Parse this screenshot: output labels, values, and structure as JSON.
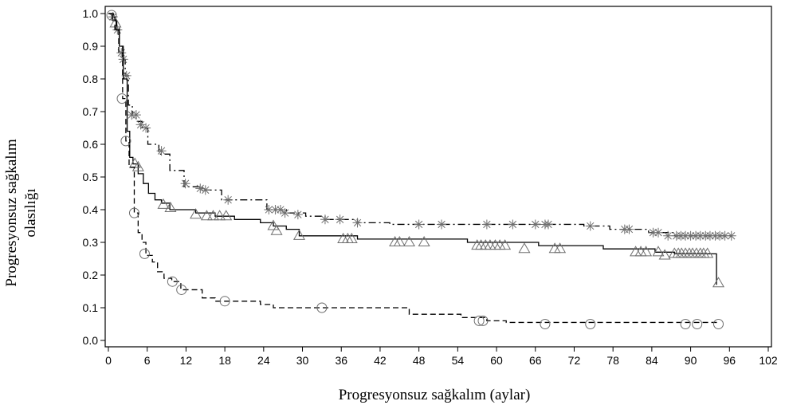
{
  "chart_data": {
    "type": "line",
    "step": true,
    "title": "",
    "xlabel": "Progresyonsuz sağkalım (aylar)",
    "ylabel_line1": "Progresyonsuz sağkalım",
    "ylabel_line2": "olasılığı",
    "xlim": [
      0,
      102
    ],
    "ylim": [
      0,
      1.02
    ],
    "xticks": [
      0,
      6,
      12,
      18,
      24,
      30,
      36,
      42,
      48,
      54,
      60,
      66,
      72,
      78,
      84,
      90,
      96,
      102
    ],
    "yticks": [
      0.0,
      0.1,
      0.2,
      0.3,
      0.4,
      0.5,
      0.6,
      0.7,
      0.8,
      0.9,
      1.0
    ],
    "legend": "none",
    "series": [
      {
        "line": "dash-dot",
        "marker": "asterisk",
        "color": "#000000",
        "marker_color": "#6e6e6e",
        "steps": [
          [
            0,
            1.0
          ],
          [
            0.8,
            0.99
          ],
          [
            1.3,
            0.96
          ],
          [
            1.7,
            0.9
          ],
          [
            2.2,
            0.86
          ],
          [
            2.6,
            0.81
          ],
          [
            3.1,
            0.72
          ],
          [
            3.7,
            0.69
          ],
          [
            4.3,
            0.67
          ],
          [
            5.2,
            0.65
          ],
          [
            6.1,
            0.6
          ],
          [
            7.8,
            0.57
          ],
          [
            9.5,
            0.52
          ],
          [
            11.7,
            0.47
          ],
          [
            14.5,
            0.46
          ],
          [
            17.5,
            0.43
          ],
          [
            24.5,
            0.4
          ],
          [
            27.5,
            0.39
          ],
          [
            30.5,
            0.38
          ],
          [
            33.5,
            0.37
          ],
          [
            38.5,
            0.36
          ],
          [
            43.5,
            0.355
          ],
          [
            73.5,
            0.35
          ],
          [
            77.5,
            0.34
          ],
          [
            83.5,
            0.33
          ],
          [
            87.5,
            0.32
          ],
          [
            96.5,
            0.32
          ]
        ],
        "markers": [
          [
            0.7,
            0.99
          ],
          [
            1.4,
            0.95
          ],
          [
            2.0,
            0.88
          ],
          [
            2.3,
            0.86
          ],
          [
            2.8,
            0.81
          ],
          [
            3.6,
            0.69
          ],
          [
            4.3,
            0.69
          ],
          [
            5.0,
            0.66
          ],
          [
            5.8,
            0.65
          ],
          [
            8.2,
            0.58
          ],
          [
            11.9,
            0.48
          ],
          [
            14.2,
            0.465
          ],
          [
            15.0,
            0.46
          ],
          [
            18.5,
            0.43
          ],
          [
            24.8,
            0.4
          ],
          [
            25.8,
            0.4
          ],
          [
            26.6,
            0.4
          ],
          [
            27.3,
            0.39
          ],
          [
            29.3,
            0.385
          ],
          [
            33.5,
            0.37
          ],
          [
            35.8,
            0.37
          ],
          [
            38.5,
            0.36
          ],
          [
            48.0,
            0.355
          ],
          [
            51.5,
            0.355
          ],
          [
            58.5,
            0.355
          ],
          [
            62.5,
            0.355
          ],
          [
            66.0,
            0.355
          ],
          [
            67.5,
            0.355
          ],
          [
            68.0,
            0.355
          ],
          [
            74.5,
            0.35
          ],
          [
            79.8,
            0.34
          ],
          [
            80.5,
            0.34
          ],
          [
            84.2,
            0.33
          ],
          [
            85.0,
            0.33
          ],
          [
            86.5,
            0.32
          ],
          [
            87.8,
            0.32
          ],
          [
            88.5,
            0.32
          ],
          [
            89.2,
            0.32
          ],
          [
            90.0,
            0.32
          ],
          [
            90.8,
            0.32
          ],
          [
            91.5,
            0.32
          ],
          [
            92.3,
            0.32
          ],
          [
            93.0,
            0.32
          ],
          [
            93.8,
            0.32
          ],
          [
            94.5,
            0.32
          ],
          [
            95.3,
            0.32
          ],
          [
            96.3,
            0.32
          ]
        ]
      },
      {
        "line": "solid",
        "marker": "triangle",
        "color": "#000000",
        "marker_color": "#6e6e6e",
        "steps": [
          [
            0,
            1.0
          ],
          [
            0.6,
            0.98
          ],
          [
            1.2,
            0.95
          ],
          [
            1.7,
            0.9
          ],
          [
            2.3,
            0.8
          ],
          [
            2.9,
            0.64
          ],
          [
            3.3,
            0.56
          ],
          [
            3.8,
            0.54
          ],
          [
            4.6,
            0.51
          ],
          [
            5.4,
            0.48
          ],
          [
            6.2,
            0.45
          ],
          [
            7.2,
            0.43
          ],
          [
            8.2,
            0.42
          ],
          [
            9.5,
            0.4
          ],
          [
            13.5,
            0.39
          ],
          [
            16.5,
            0.38
          ],
          [
            19.5,
            0.37
          ],
          [
            23.5,
            0.36
          ],
          [
            25.5,
            0.35
          ],
          [
            27.5,
            0.34
          ],
          [
            29.5,
            0.32
          ],
          [
            38.5,
            0.31
          ],
          [
            55.5,
            0.3
          ],
          [
            66.5,
            0.29
          ],
          [
            76.5,
            0.28
          ],
          [
            84.5,
            0.27
          ],
          [
            87.5,
            0.265
          ],
          [
            94,
            0.265
          ],
          [
            94,
            0.17
          ]
        ],
        "markers": [
          [
            1.1,
            0.97
          ],
          [
            4.1,
            0.54
          ],
          [
            4.6,
            0.53
          ],
          [
            8.5,
            0.415
          ],
          [
            9.6,
            0.405
          ],
          [
            13.5,
            0.385
          ],
          [
            15.2,
            0.38
          ],
          [
            16.2,
            0.38
          ],
          [
            17.2,
            0.38
          ],
          [
            18.2,
            0.38
          ],
          [
            25.5,
            0.35
          ],
          [
            26.0,
            0.335
          ],
          [
            29.5,
            0.32
          ],
          [
            36.3,
            0.31
          ],
          [
            37.0,
            0.31
          ],
          [
            37.6,
            0.31
          ],
          [
            44.3,
            0.3
          ],
          [
            45.0,
            0.3
          ],
          [
            46.5,
            0.3
          ],
          [
            48.8,
            0.3
          ],
          [
            57.0,
            0.29
          ],
          [
            57.6,
            0.29
          ],
          [
            58.3,
            0.29
          ],
          [
            59.0,
            0.29
          ],
          [
            59.8,
            0.29
          ],
          [
            60.5,
            0.29
          ],
          [
            61.3,
            0.29
          ],
          [
            64.3,
            0.28
          ],
          [
            69.0,
            0.28
          ],
          [
            69.8,
            0.28
          ],
          [
            81.5,
            0.27
          ],
          [
            82.3,
            0.27
          ],
          [
            83.1,
            0.27
          ],
          [
            85.0,
            0.27
          ],
          [
            86.0,
            0.26
          ],
          [
            87.5,
            0.265
          ],
          [
            88.1,
            0.265
          ],
          [
            88.6,
            0.265
          ],
          [
            89.2,
            0.265
          ],
          [
            89.8,
            0.265
          ],
          [
            90.3,
            0.265
          ],
          [
            90.9,
            0.265
          ],
          [
            91.5,
            0.265
          ],
          [
            92.0,
            0.265
          ],
          [
            92.6,
            0.265
          ],
          [
            94.3,
            0.175
          ]
        ]
      },
      {
        "line": "dashed",
        "marker": "circle",
        "color": "#000000",
        "marker_color": "#6e6e6e",
        "steps": [
          [
            0,
            1.0
          ],
          [
            0.6,
            0.99
          ],
          [
            1.0,
            0.95
          ],
          [
            1.6,
            0.88
          ],
          [
            2.2,
            0.74
          ],
          [
            2.7,
            0.61
          ],
          [
            3.2,
            0.53
          ],
          [
            4.0,
            0.39
          ],
          [
            4.6,
            0.33
          ],
          [
            5.2,
            0.3
          ],
          [
            5.8,
            0.26
          ],
          [
            6.8,
            0.24
          ],
          [
            7.6,
            0.21
          ],
          [
            8.6,
            0.19
          ],
          [
            9.8,
            0.18
          ],
          [
            11.2,
            0.155
          ],
          [
            14.5,
            0.13
          ],
          [
            16.5,
            0.12
          ],
          [
            23.5,
            0.11
          ],
          [
            25.5,
            0.1
          ],
          [
            46.5,
            0.08
          ],
          [
            54.5,
            0.07
          ],
          [
            58.5,
            0.06
          ],
          [
            61.5,
            0.055
          ],
          [
            94.5,
            0.055
          ]
        ],
        "markers": [
          [
            0.5,
            0.995
          ],
          [
            2.1,
            0.74
          ],
          [
            2.7,
            0.61
          ],
          [
            4.0,
            0.39
          ],
          [
            5.6,
            0.265
          ],
          [
            9.9,
            0.18
          ],
          [
            11.3,
            0.155
          ],
          [
            18.0,
            0.12
          ],
          [
            33.0,
            0.1
          ],
          [
            57.3,
            0.06
          ],
          [
            57.9,
            0.06
          ],
          [
            67.5,
            0.05
          ],
          [
            74.5,
            0.05
          ],
          [
            89.2,
            0.05
          ],
          [
            91.0,
            0.05
          ],
          [
            94.3,
            0.05
          ]
        ]
      }
    ]
  }
}
